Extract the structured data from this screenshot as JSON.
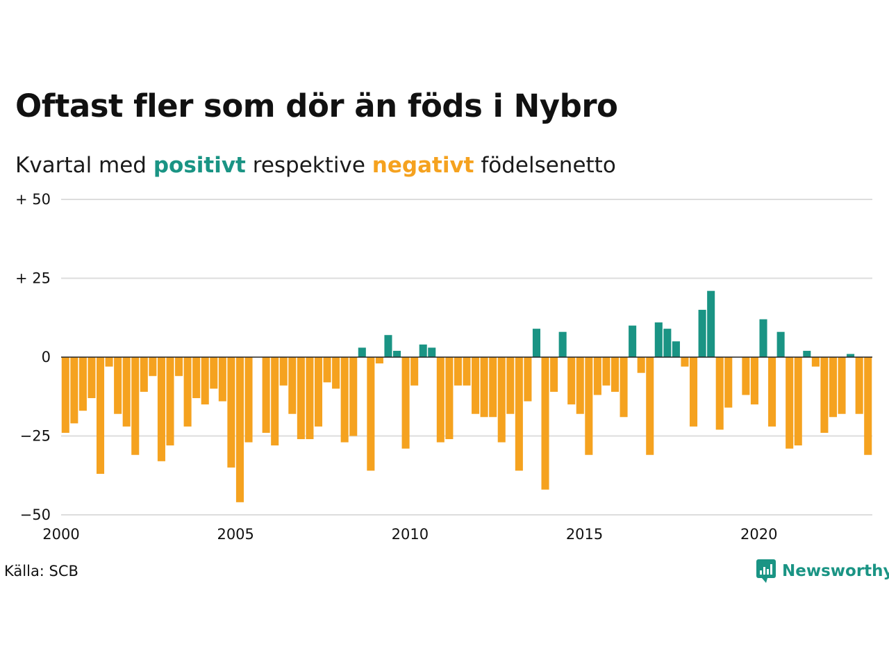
{
  "header": {
    "title": "Oftast fler som dör än föds i Nybro",
    "subtitle_prefix": "Kvartal med",
    "subtitle_positive": "positivt",
    "subtitle_middle": "respektive",
    "subtitle_negative": "negativt",
    "subtitle_suffix": "födelsenetto"
  },
  "footer": {
    "source": "Källa: SCB",
    "brand_name": "Newsworthy",
    "brand_icon": "newsworthy-logo-icon"
  },
  "colors": {
    "positive": "#1a9484",
    "negative": "#f5a21f",
    "grid": "#dddddd",
    "zero_line": "#222222",
    "text": "#111111"
  },
  "chart_data": {
    "type": "bar",
    "title": "Oftast fler som dör än föds i Nybro",
    "subtitle": "Kvartal med positivt respektive negativt födelsenetto",
    "x_start_year": 2000,
    "periods_per_year": 4,
    "xlim": [
      2000,
      2023.25
    ],
    "ylim": [
      -50,
      50
    ],
    "y_ticks": [
      {
        "value": 50,
        "label": "+ 50"
      },
      {
        "value": 25,
        "label": "+ 25"
      },
      {
        "value": 0,
        "label": "0"
      },
      {
        "value": -25,
        "label": "−25"
      },
      {
        "value": -50,
        "label": "−50"
      }
    ],
    "x_ticks": [
      {
        "value": 2000,
        "label": "2000"
      },
      {
        "value": 2005,
        "label": "2005"
      },
      {
        "value": 2010,
        "label": "2010"
      },
      {
        "value": 2015,
        "label": "2015"
      },
      {
        "value": 2020,
        "label": "2020"
      }
    ],
    "grid": true,
    "legend": "none",
    "values": [
      -24,
      -21,
      -17,
      -13,
      -37,
      -3,
      -18,
      -22,
      -31,
      -11,
      -6,
      -33,
      -28,
      -6,
      -22,
      -13,
      -15,
      -10,
      -14,
      -35,
      -46,
      -27,
      0,
      -24,
      -28,
      -9,
      -18,
      -26,
      -26,
      -22,
      -8,
      -10,
      -27,
      -25,
      3,
      -36,
      -2,
      7,
      2,
      -29,
      -9,
      4,
      3,
      -27,
      -26,
      -9,
      -9,
      -18,
      -19,
      -19,
      -27,
      -18,
      -36,
      -14,
      9,
      -42,
      -11,
      8,
      -15,
      -18,
      -31,
      -12,
      -9,
      -11,
      -19,
      10,
      -5,
      -31,
      11,
      9,
      5,
      -3,
      -22,
      15,
      21,
      -23,
      -16,
      0,
      -12,
      -15,
      12,
      -22,
      8,
      -29,
      -28,
      2,
      -3,
      -24,
      -19,
      -18,
      1,
      -18,
      -31
    ]
  }
}
